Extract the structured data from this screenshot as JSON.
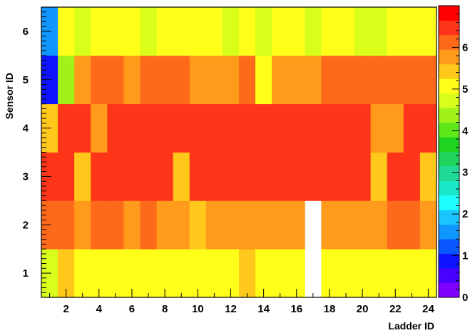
{
  "chart_data": {
    "type": "heatmap",
    "title": "",
    "xlabel": "Ladder ID",
    "ylabel": "Sensor ID",
    "xlim": [
      0.5,
      24.5
    ],
    "ylim": [
      0.5,
      6.5
    ],
    "x_ticks": [
      "2",
      "4",
      "6",
      "8",
      "10",
      "12",
      "14",
      "16",
      "18",
      "20",
      "22",
      "24"
    ],
    "y_ticks": [
      "1",
      "2",
      "3",
      "4",
      "5",
      "6"
    ],
    "z_range": [
      0,
      7
    ],
    "colorbar_ticks": [
      "0",
      "1",
      "2",
      "3",
      "4",
      "5",
      "6"
    ],
    "palette": [
      "#7f00ff",
      "#4a00ff",
      "#0e14ff",
      "#0a58ff",
      "#0f96ff",
      "#19c6ff",
      "#1fffff",
      "#1ae8c8",
      "#21d996",
      "#1fd45c",
      "#1fd41f",
      "#5ee81a",
      "#a0f21a",
      "#d8ff1a",
      "#ffff1a",
      "#ffc81a",
      "#ff9a1a",
      "#ff6a1a",
      "#ff351a",
      "#ff0000"
    ],
    "grid": false,
    "rows": [
      {
        "sensor": 1,
        "values": [
          4.8,
          5.3,
          5.1,
          5.1,
          5.1,
          5.1,
          5.1,
          5.1,
          5.1,
          5.1,
          5.1,
          5.1,
          5.4,
          5.1,
          5.1,
          5.1,
          null,
          5.1,
          5.1,
          5.1,
          5.1,
          5.1,
          5.1,
          5.1
        ]
      },
      {
        "sensor": 2,
        "values": [
          6.0,
          6.0,
          5.8,
          6.0,
          6.0,
          5.8,
          6.0,
          5.8,
          5.8,
          5.3,
          5.8,
          5.8,
          5.8,
          5.8,
          5.8,
          5.8,
          null,
          5.8,
          5.8,
          5.8,
          5.8,
          6.0,
          6.0,
          5.8
        ]
      },
      {
        "sensor": 3,
        "values": [
          6.3,
          6.6,
          5.4,
          6.6,
          6.6,
          6.6,
          6.3,
          6.3,
          5.4,
          6.6,
          6.3,
          6.6,
          6.3,
          6.3,
          6.3,
          6.3,
          6.6,
          6.3,
          6.3,
          6.3,
          5.4,
          6.6,
          6.6,
          5.4
        ]
      },
      {
        "sensor": 4,
        "values": [
          5.4,
          6.6,
          6.3,
          5.8,
          6.3,
          6.6,
          6.6,
          6.6,
          6.6,
          6.3,
          6.3,
          6.6,
          6.3,
          6.3,
          6.3,
          6.6,
          6.6,
          6.6,
          6.6,
          6.3,
          5.8,
          5.8,
          6.6,
          6.6
        ]
      },
      {
        "sensor": 5,
        "values": [
          0.8,
          4.2,
          5.8,
          6.0,
          6.0,
          5.8,
          6.0,
          6.0,
          6.0,
          5.8,
          5.8,
          5.8,
          6.0,
          5.1,
          5.8,
          5.8,
          5.8,
          6.0,
          6.0,
          6.0,
          6.0,
          6.0,
          6.0,
          6.0
        ]
      },
      {
        "sensor": 6,
        "values": [
          1.5,
          5.1,
          4.8,
          5.1,
          5.1,
          5.1,
          4.8,
          5.1,
          5.1,
          5.1,
          5.1,
          4.8,
          5.1,
          4.8,
          5.1,
          5.1,
          4.8,
          5.1,
          5.1,
          4.6,
          4.6,
          5.1,
          5.1,
          5.1
        ]
      }
    ]
  }
}
